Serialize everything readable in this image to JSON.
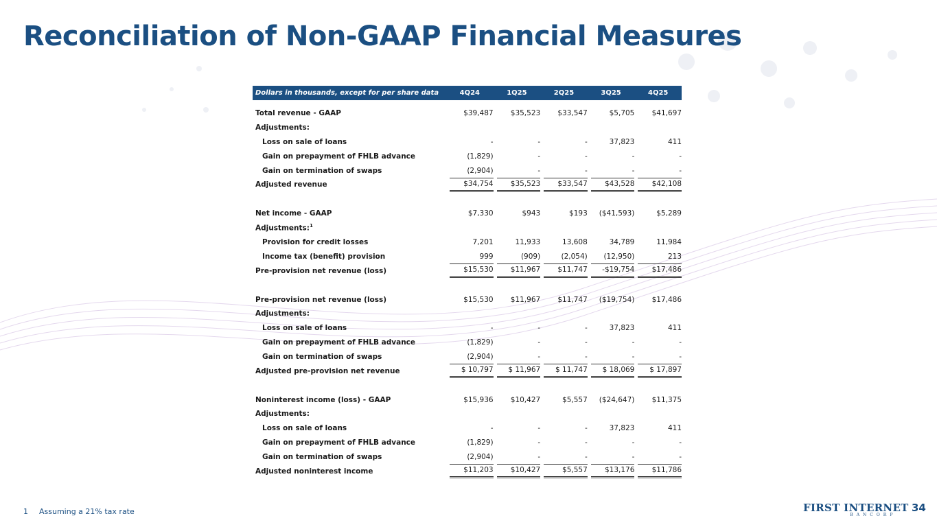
{
  "title": "Reconciliation of Non-GAAP Financial Measures",
  "table": {
    "header": [
      "Dollars in thousands, except for per share data",
      "4Q24",
      "1Q25",
      "2Q25",
      "3Q25",
      "4Q25"
    ],
    "sections": [
      {
        "label": "Total revenue - GAAP",
        "values": [
          "$39,487",
          "$35,523",
          "$33,547",
          "$5,705",
          "$41,697"
        ],
        "adjustments_label": "Adjustments:",
        "adjustments": [
          {
            "label": "Loss on sale of loans",
            "values": [
              "-",
              "-",
              "-",
              "37,823",
              "411"
            ]
          },
          {
            "label": "Gain on prepayment of FHLB advance",
            "values": [
              "(1,829)",
              "-",
              "-",
              "-",
              "-"
            ]
          },
          {
            "label": "Gain on termination of swaps",
            "values": [
              "(2,904)",
              "-",
              "-",
              "-",
              "-"
            ]
          }
        ],
        "total": {
          "label": "Adjusted revenue",
          "values": [
            "$34,754",
            "$35,523",
            "$33,547",
            "$43,528",
            "$42,108"
          ]
        }
      },
      {
        "label": "Net income - GAAP",
        "values": [
          "$7,330",
          "$943",
          "$193",
          "($41,593)",
          "$5,289"
        ],
        "adjustments_label": "Adjustments:",
        "footnote_ref": "1",
        "adjustments": [
          {
            "label": "Provision for credit losses",
            "values": [
              "7,201",
              "11,933",
              "13,608",
              "34,789",
              "11,984"
            ]
          },
          {
            "label": "Income tax (benefit) provision",
            "values": [
              "999",
              "(909)",
              "(2,054)",
              "(12,950)",
              "213"
            ]
          }
        ],
        "total": {
          "label": "Pre-provision net revenue (loss)",
          "values": [
            "$15,530",
            "$11,967",
            "$11,747",
            "-$19,754",
            "$17,486"
          ]
        }
      },
      {
        "label": "Pre-provision net revenue (loss)",
        "values": [
          "$15,530",
          "$11,967",
          "$11,747",
          "($19,754)",
          "$17,486"
        ],
        "adjustments_label": "Adjustments:",
        "adjustments": [
          {
            "label": "Loss on sale of loans",
            "values": [
              "-",
              "-",
              "-",
              "37,823",
              "411"
            ]
          },
          {
            "label": "Gain on prepayment of FHLB advance",
            "values": [
              "(1,829)",
              "-",
              "-",
              "-",
              "-"
            ]
          },
          {
            "label": "Gain on termination of swaps",
            "values": [
              "(2,904)",
              "-",
              "-",
              "-",
              "-"
            ]
          }
        ],
        "total": {
          "label": "Adjusted pre-provision net revenue",
          "values": [
            "$ 10,797",
            "$ 11,967",
            "$ 11,747",
            "$ 18,069",
            "$ 17,897"
          ]
        }
      },
      {
        "label": "Noninterest income (loss) - GAAP",
        "values": [
          "$15,936",
          "$10,427",
          "$5,557",
          "($24,647)",
          "$11,375"
        ],
        "adjustments_label": "Adjustments:",
        "adjustments": [
          {
            "label": "Loss on sale of loans",
            "values": [
              "-",
              "-",
              "-",
              "37,823",
              "411"
            ]
          },
          {
            "label": "Gain on prepayment of FHLB advance",
            "values": [
              "(1,829)",
              "-",
              "-",
              "-",
              "-"
            ]
          },
          {
            "label": "Gain on termination of swaps",
            "values": [
              "(2,904)",
              "-",
              "-",
              "-",
              "-"
            ]
          }
        ],
        "total": {
          "label": "Adjusted noninterest income",
          "values": [
            "$11,203",
            "$10,427",
            "$5,557",
            "$13,176",
            "$11,786"
          ]
        }
      }
    ]
  },
  "footnote": {
    "number": "1",
    "text": "Assuming a 21% tax rate"
  },
  "page_number": "34",
  "logo": {
    "name": "FIRST INTERNET",
    "sub": "BANCORP"
  }
}
